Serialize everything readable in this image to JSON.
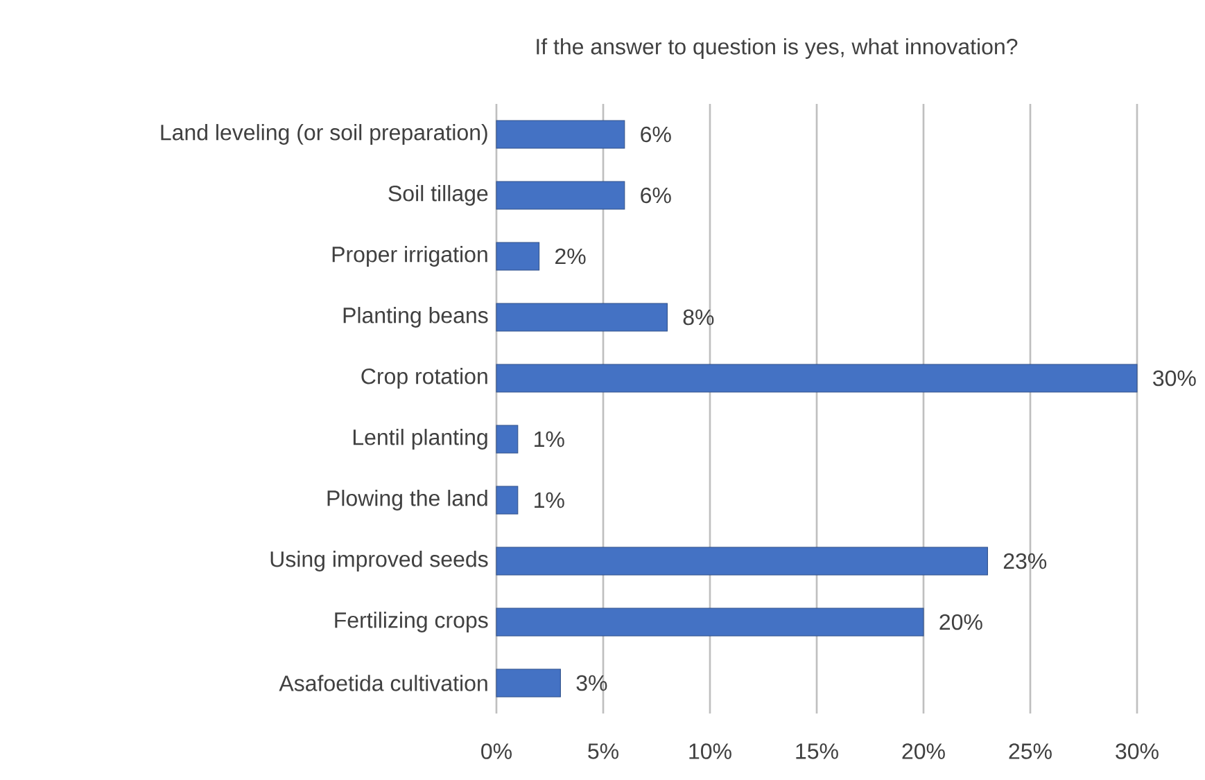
{
  "chart_data": {
    "type": "bar",
    "orientation": "horizontal",
    "title": "If the answer to question is yes, what innovation?",
    "categories": [
      "Land leveling (or soil preparation)",
      "Soil tillage",
      "Proper irrigation",
      "Planting beans",
      "Crop rotation",
      "Lentil planting",
      "Plowing the land",
      "Using improved seeds",
      "Fertilizing crops",
      "Asafoetida cultivation"
    ],
    "values": [
      6,
      6,
      2,
      8,
      30,
      1,
      1,
      23,
      20,
      3
    ],
    "value_labels": [
      "6%",
      "6%",
      "2%",
      "8%",
      "30%",
      "1%",
      "1%",
      "23%",
      "20%",
      "3%"
    ],
    "color": "#4472c4",
    "xlim": [
      0,
      30
    ],
    "xticks": [
      {
        "value": 0,
        "label": "0%"
      },
      {
        "value": 5,
        "label": "5%"
      },
      {
        "value": 10,
        "label": "10%"
      },
      {
        "value": 15,
        "label": "15%"
      },
      {
        "value": 20,
        "label": "20%"
      },
      {
        "value": 25,
        "label": "25%"
      },
      {
        "value": 30,
        "label": "30%"
      }
    ],
    "grid": "x"
  }
}
